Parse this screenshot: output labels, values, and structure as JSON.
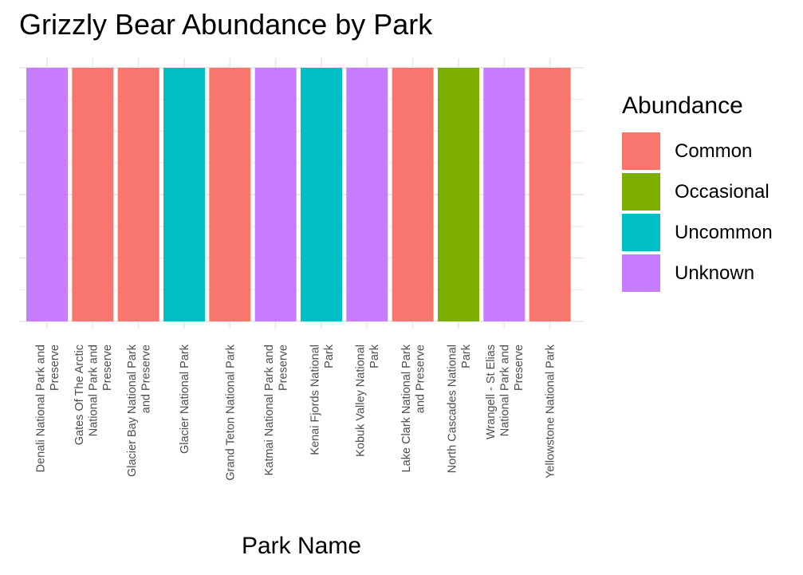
{
  "chart_data": {
    "type": "bar",
    "title": "Grizzly Bear Abundance by Park",
    "xlabel": "Park Name",
    "ylabel": "",
    "legend_title": "Abundance",
    "legend_position": "right",
    "grid": true,
    "categories": [
      "Denali National Park and Preserve",
      "Gates Of The Arctic National Park and Preserve",
      "Glacier Bay National Park and Preserve",
      "Glacier National Park",
      "Grand Teton National Park",
      "Katmai National Park and Preserve",
      "Kenai Fjords National Park",
      "Kobuk Valley National Park",
      "Lake Clark National Park and Preserve",
      "North Cascades National Park",
      "Wrangell - St Elias National Park and Preserve",
      "Yellowstone National Park"
    ],
    "category_label_lines": [
      [
        "Denali National Park and",
        "Preserve"
      ],
      [
        "Gates Of The Arctic",
        "National Park and",
        "Preserve"
      ],
      [
        "Glacier Bay National Park",
        "and Preserve"
      ],
      [
        "Glacier National Park"
      ],
      [
        "Grand Teton National Park"
      ],
      [
        "Katmai National Park and",
        "Preserve"
      ],
      [
        "Kenai Fjords National",
        "Park"
      ],
      [
        "Kobuk Valley National",
        "Park"
      ],
      [
        "Lake Clark National Park",
        "and Preserve"
      ],
      [
        "North Cascades National",
        "Park"
      ],
      [
        "Wrangell - St Elias",
        "National Park and",
        "Preserve"
      ],
      [
        "Yellowstone National Park"
      ]
    ],
    "values": [
      1,
      1,
      1,
      1,
      1,
      1,
      1,
      1,
      1,
      1,
      1,
      1
    ],
    "fill": [
      "Unknown",
      "Common",
      "Common",
      "Uncommon",
      "Common",
      "Unknown",
      "Uncommon",
      "Unknown",
      "Common",
      "Occasional",
      "Unknown",
      "Common"
    ],
    "ylim": [
      0,
      1
    ],
    "legend": [
      {
        "label": "Common",
        "color": "#F8766D"
      },
      {
        "label": "Occasional",
        "color": "#7CAE00"
      },
      {
        "label": "Uncommon",
        "color": "#00BFC4"
      },
      {
        "label": "Unknown",
        "color": "#C77CFF"
      }
    ]
  }
}
